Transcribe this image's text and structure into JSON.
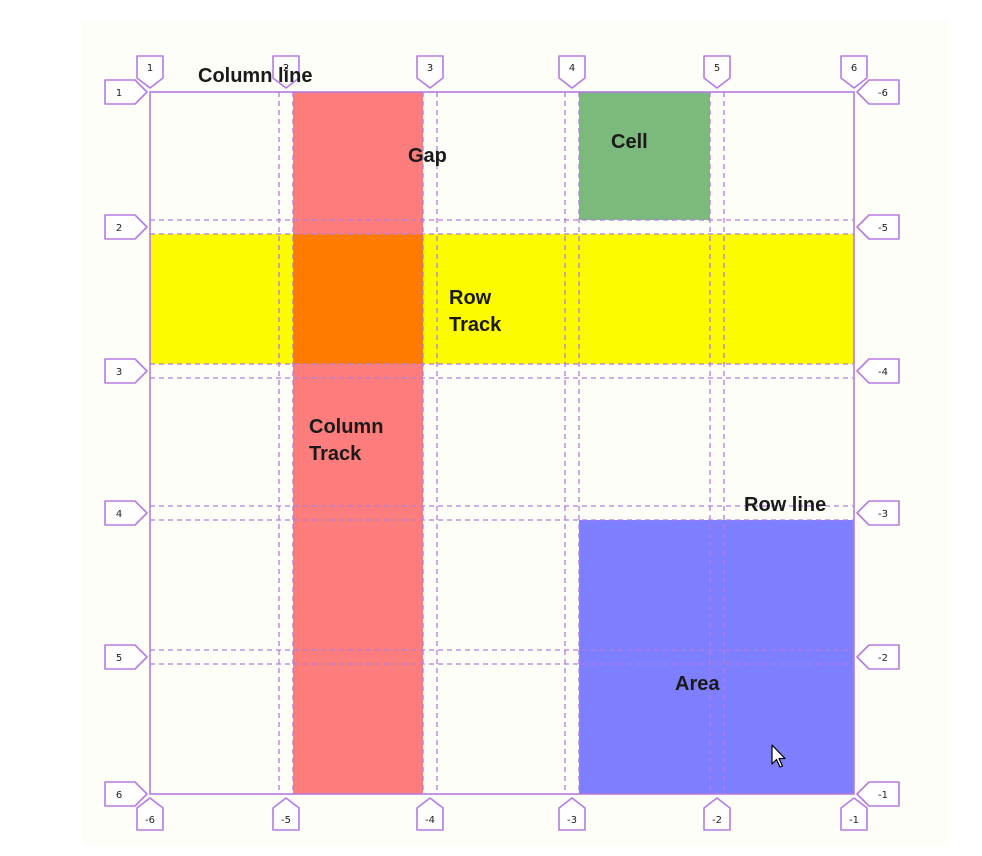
{
  "colors": {
    "page_bg": "#ffffff",
    "canvas_bg": "#fefef8",
    "grid_line": "#b57be0",
    "column_track": "#fd7c7c",
    "row_track": "#fdfb00",
    "intersection": "#fe7b00",
    "cell": "#7cb97c",
    "area": "#7e7ffe",
    "label": "#1a1a1a"
  },
  "labels": {
    "column_line": "Column line",
    "gap": "Gap",
    "cell": "Cell",
    "row_track_1": "Row",
    "row_track_2": "Track",
    "column_track_1": "Column",
    "column_track_2": "Track",
    "row_line": "Row line",
    "area": "Area"
  },
  "markers": {
    "top": [
      "1",
      "2",
      "3",
      "4",
      "5",
      "6"
    ],
    "bottom": [
      "-6",
      "-5",
      "-4",
      "-3",
      "-2",
      "-1"
    ],
    "left": [
      "1",
      "2",
      "3",
      "4",
      "5",
      "6"
    ],
    "right": [
      "-6",
      "-5",
      "-4",
      "-3",
      "-2",
      "-1"
    ]
  },
  "icons": {
    "cursor": "mouse-pointer-icon"
  }
}
